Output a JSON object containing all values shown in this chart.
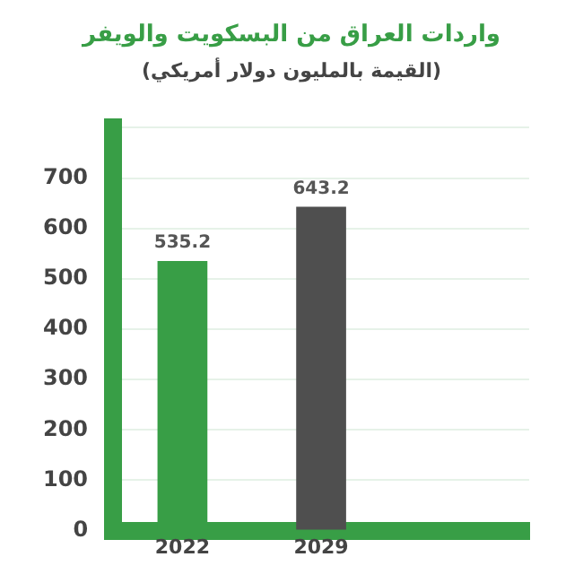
{
  "chart_data": {
    "type": "bar",
    "title": "واردات العراق من البسكويت والويفر",
    "subtitle": "(القيمة بالمليون دولار أمريكي)",
    "categories": [
      "2022",
      "2029",
      null
    ],
    "values": [
      535.2,
      643.2,
      null
    ],
    "colors": [
      "#389e46",
      "#4f4f4f",
      "#389e46"
    ],
    "ylim": [
      0,
      800
    ],
    "yticks": [
      0,
      100,
      200,
      300,
      400,
      500,
      600,
      700,
      {
        "value": 800,
        "label": null
      }
    ],
    "grid": "y",
    "data_labels": true,
    "legend": false
  }
}
